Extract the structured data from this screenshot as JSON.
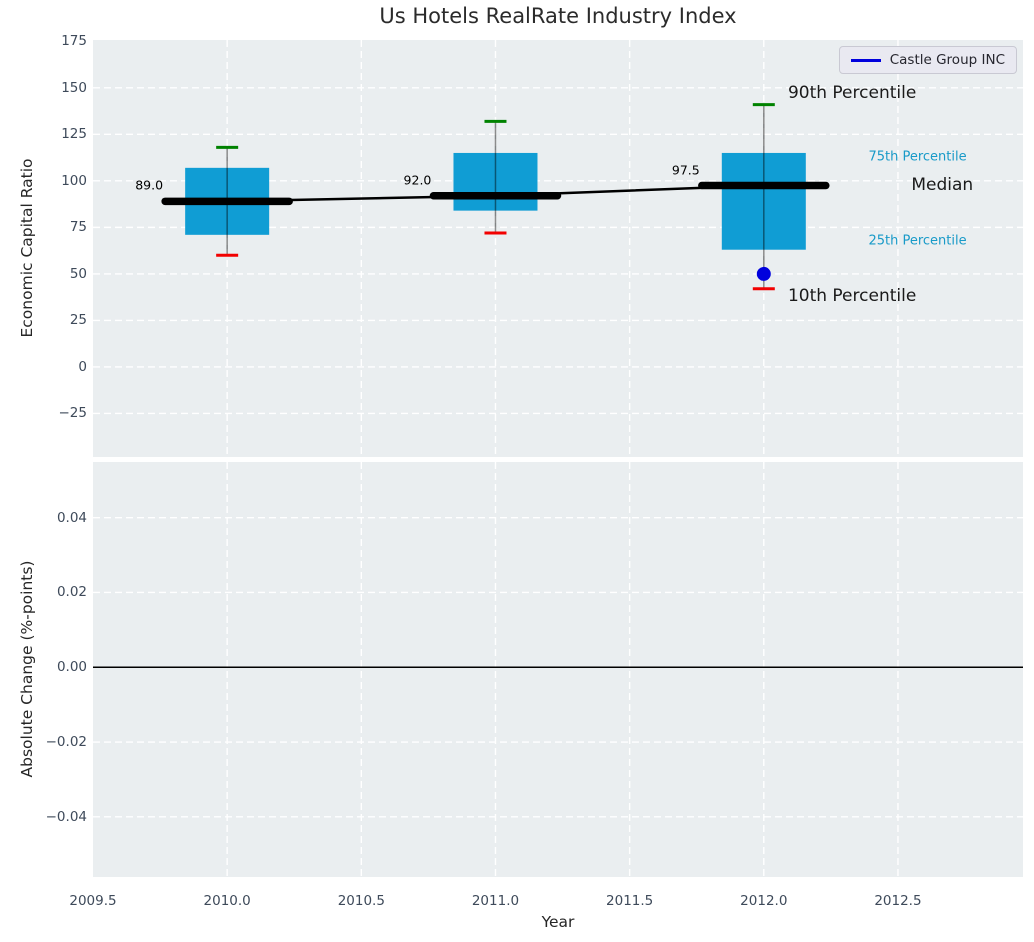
{
  "title": "Us Hotels RealRate Industry Index",
  "legend": {
    "label": "Castle Group INC",
    "line_color": "#0000dd"
  },
  "colors": {
    "axes_bg": "#eaeef0",
    "grid": "#ffffff",
    "box_fill": "#109dd4",
    "cap_90th": "#008200",
    "cap_10th": "#f20000",
    "median_line": "#000000",
    "trend_line": "#000000",
    "company_point": "#0000dd",
    "tick_label": "#3e4a5a",
    "annotation_accent": "#189ac8",
    "zero_line": "#000000"
  },
  "chart_data": [
    {
      "type": "bar",
      "subtype": "boxplot-with-median-trend",
      "title": "Us Hotels RealRate Industry Index",
      "xlabel": "Year",
      "ylabel": "Economic Capital Ratio",
      "xlim": [
        2009.5,
        2012.966
      ],
      "ylim": [
        -48.4,
        175.7
      ],
      "grid": "white dashed, on",
      "legend_position": "upper right",
      "xticks": [
        2009.5,
        2010.0,
        2010.5,
        2011.0,
        2011.5,
        2012.0,
        2012.5
      ],
      "xtick_labels": [
        "2009.5",
        "2010.0",
        "2010.5",
        "2011.0",
        "2011.5",
        "2012.0",
        "2012.5"
      ],
      "yticks": [
        175,
        150,
        125,
        100,
        75,
        50,
        25,
        0,
        -25
      ],
      "ytick_labels": [
        "175",
        "150",
        "125",
        "100",
        "75",
        "50",
        "25",
        "0",
        "−25"
      ],
      "boxes": [
        {
          "x": 2010,
          "p90": 118,
          "p75": 107,
          "median": 89.0,
          "p25": 71,
          "p10": 60,
          "median_label": "89.0"
        },
        {
          "x": 2011,
          "p90": 132,
          "p75": 115,
          "median": 92.0,
          "p25": 84,
          "p10": 72,
          "median_label": "92.0"
        },
        {
          "x": 2012,
          "p90": 141,
          "p75": 115,
          "median": 97.5,
          "p25": 63,
          "p10": 42,
          "median_label": "97.5"
        }
      ],
      "median_trend": [
        [
          2010,
          89.0
        ],
        [
          2011,
          92.0
        ],
        [
          2012,
          97.5
        ]
      ],
      "series": [
        {
          "name": "Castle Group INC",
          "x": [
            2012
          ],
          "values": [
            50
          ]
        }
      ],
      "annotations": [
        {
          "text": "90th Percentile",
          "x": 2012.09,
          "y": 147.2,
          "accent": false,
          "size": 17,
          "anchor": "start"
        },
        {
          "text": "75th Percentile",
          "x": 2012.39,
          "y": 112.9,
          "accent": true,
          "size": 13,
          "anchor": "start"
        },
        {
          "text": "Median",
          "x": 2012.55,
          "y": 97.7,
          "accent": false,
          "size": 17,
          "anchor": "start"
        },
        {
          "text": "25th Percentile",
          "x": 2012.39,
          "y": 67.6,
          "accent": true,
          "size": 13,
          "anchor": "start"
        },
        {
          "text": "10th Percentile",
          "x": 2012.09,
          "y": 38.2,
          "accent": false,
          "size": 17,
          "anchor": "start"
        }
      ]
    },
    {
      "type": "line",
      "subtype": "empty-panel-with-zero-line",
      "xlabel": "Year",
      "ylabel": "Absolute Change (%-points)",
      "xlim": [
        2009.5,
        2012.966
      ],
      "ylim": [
        -0.0561,
        0.0549
      ],
      "grid": "white dashed, on",
      "yticks": [
        0.04,
        0.02,
        0.0,
        -0.02,
        -0.04
      ],
      "ytick_labels": [
        "0.04",
        "0.02",
        "0.00",
        "−0.02",
        "−0.04"
      ],
      "zero_line": 0.0,
      "series": []
    }
  ]
}
